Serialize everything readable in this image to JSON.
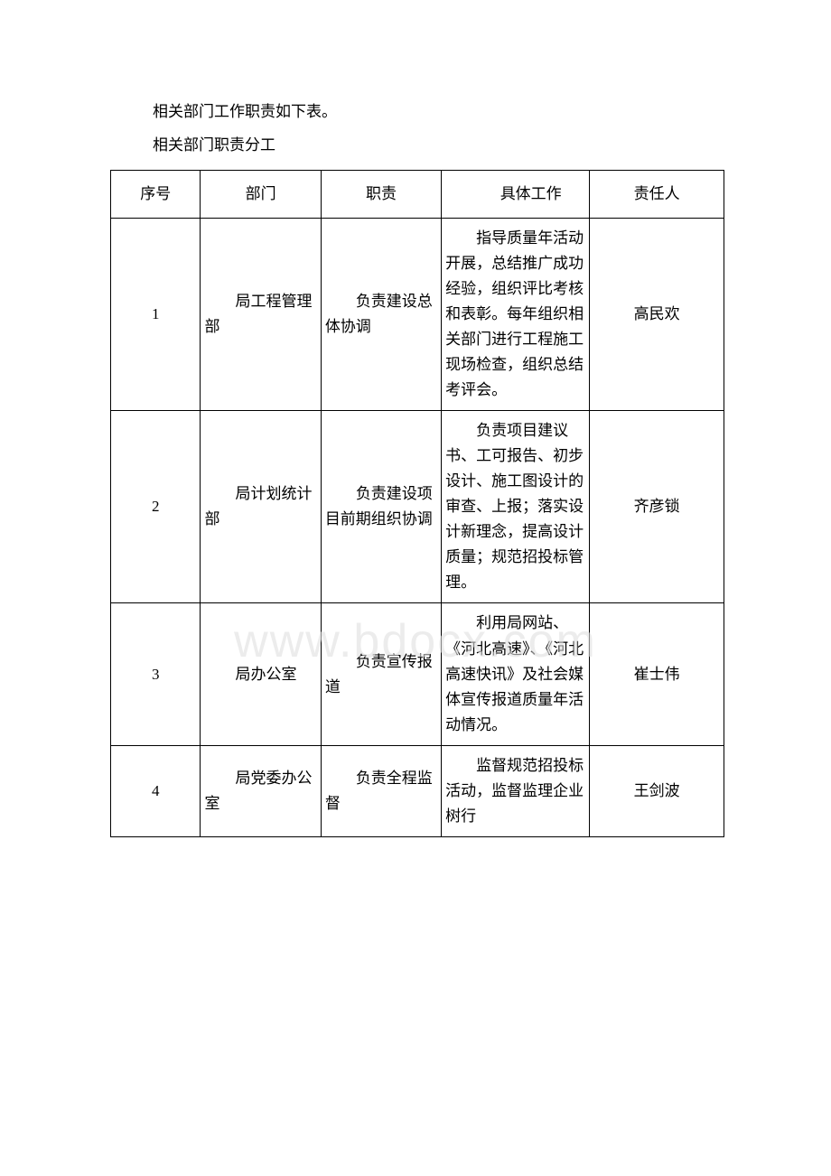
{
  "intro": "相关部门工作职责如下表。",
  "tableTitle": "相关部门职责分工",
  "watermark": "www.bdocx.com",
  "header": {
    "seq": "序号",
    "dept": "部门",
    "duty": "职责",
    "work": "具体工作",
    "person": "责任人"
  },
  "rows": [
    {
      "seq": "1",
      "dept": "局工程管理部",
      "duty": "负责建设总体协调",
      "work": "指导质量年活动开展，总结推广成功经验，组织评比考核和表彰。每年组织相关部门进行工程施工现场检查，组织总结考评会。",
      "person": "高民欢"
    },
    {
      "seq": "2",
      "dept": "局计划统计部",
      "duty": "负责建设项目前期组织协调",
      "work": "负责项目建议书、工可报告、初步设计、施工图设计的审查、上报；落实设计新理念，提高设计质量；规范招投标管理。",
      "person": "齐彦锁"
    },
    {
      "seq": "3",
      "dept": "局办公室",
      "duty": "负责宣传报道",
      "work": "利用局网站、《河北高速》、《河北高速快讯》及社会媒体宣传报道质量年活动情况。",
      "person": "崔士伟"
    },
    {
      "seq": "4",
      "dept": "局党委办公室",
      "duty": "负责全程监督",
      "work": "监督规范招投标活动，监督监理企业树行",
      "person": "王剑波"
    }
  ],
  "colors": {
    "text": "#000000",
    "background": "#ffffff",
    "border": "#000000",
    "watermark": "#e0e0e0"
  }
}
